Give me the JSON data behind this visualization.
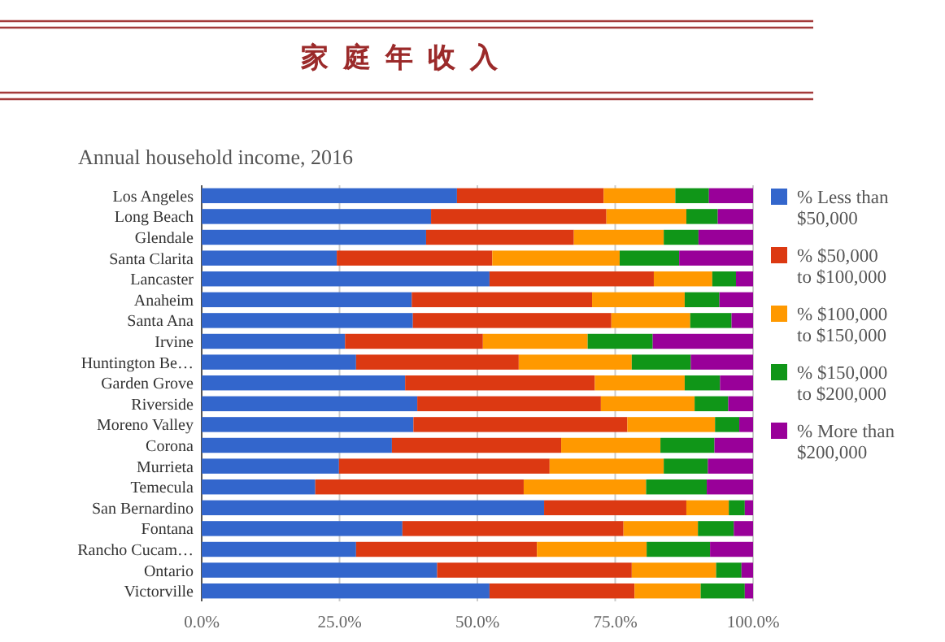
{
  "chart_data": {
    "type": "bar",
    "orientation": "horizontal",
    "stacked": true,
    "title": "家庭年收入",
    "subtitle": "Annual household income, 2016",
    "categories": [
      "Los Angeles",
      "Long Beach",
      "Glendale",
      "Santa Clarita",
      "Lancaster",
      "Anaheim",
      "Santa Ana",
      "Irvine",
      "Huntington Be…",
      "Garden Grove",
      "Riverside",
      "Moreno Valley",
      "Corona",
      "Murrieta",
      "Temecula",
      "San Bernardino",
      "Fontana",
      "Rancho Cucam…",
      "Ontario",
      "Victorville"
    ],
    "series": [
      {
        "name": "% Less than $50,000",
        "color": "#3366cc",
        "values": [
          46.3,
          41.6,
          40.7,
          24.5,
          52.2,
          38.1,
          38.3,
          26.0,
          28.0,
          36.9,
          39.1,
          38.4,
          34.5,
          24.9,
          20.6,
          62.1,
          36.4,
          28.0,
          42.7,
          52.2
        ]
      },
      {
        "name": "% $50,000 to $100,000",
        "color": "#dc3912",
        "values": [
          26.6,
          31.8,
          26.8,
          28.2,
          29.8,
          32.7,
          36.0,
          25.0,
          29.5,
          34.4,
          33.3,
          38.8,
          30.7,
          38.2,
          37.8,
          25.8,
          40.1,
          32.8,
          35.3,
          26.3
        ]
      },
      {
        "name": "% $100,000 to $150,000",
        "color": "#ff9900",
        "values": [
          13.0,
          14.5,
          16.3,
          23.1,
          10.6,
          16.8,
          14.3,
          19.0,
          20.5,
          16.3,
          17.0,
          15.9,
          18.0,
          20.7,
          22.2,
          7.7,
          13.5,
          19.9,
          15.3,
          12.0
        ]
      },
      {
        "name": "% $150,000 to $200,000",
        "color": "#109618",
        "values": [
          6.1,
          5.7,
          6.3,
          10.8,
          4.3,
          6.3,
          7.5,
          11.8,
          10.7,
          6.4,
          6.1,
          4.4,
          9.8,
          8.0,
          11.0,
          2.9,
          6.5,
          11.5,
          4.6,
          8.0
        ]
      },
      {
        "name": "% More than $200,000",
        "color": "#990099",
        "values": [
          8.0,
          6.4,
          9.9,
          13.4,
          3.1,
          6.1,
          3.9,
          18.2,
          11.3,
          6.0,
          4.5,
          2.5,
          7.0,
          8.2,
          8.4,
          1.5,
          3.5,
          7.8,
          2.1,
          1.5
        ]
      }
    ],
    "xlim": [
      0,
      100
    ],
    "xticks": [
      {
        "value": 0,
        "label": "0.0%"
      },
      {
        "value": 25,
        "label": "25.0%"
      },
      {
        "value": 50,
        "label": "50.0%"
      },
      {
        "value": 75,
        "label": "75.0%"
      },
      {
        "value": 100,
        "label": "100.0%"
      }
    ],
    "grid": "x",
    "legend": "right"
  }
}
